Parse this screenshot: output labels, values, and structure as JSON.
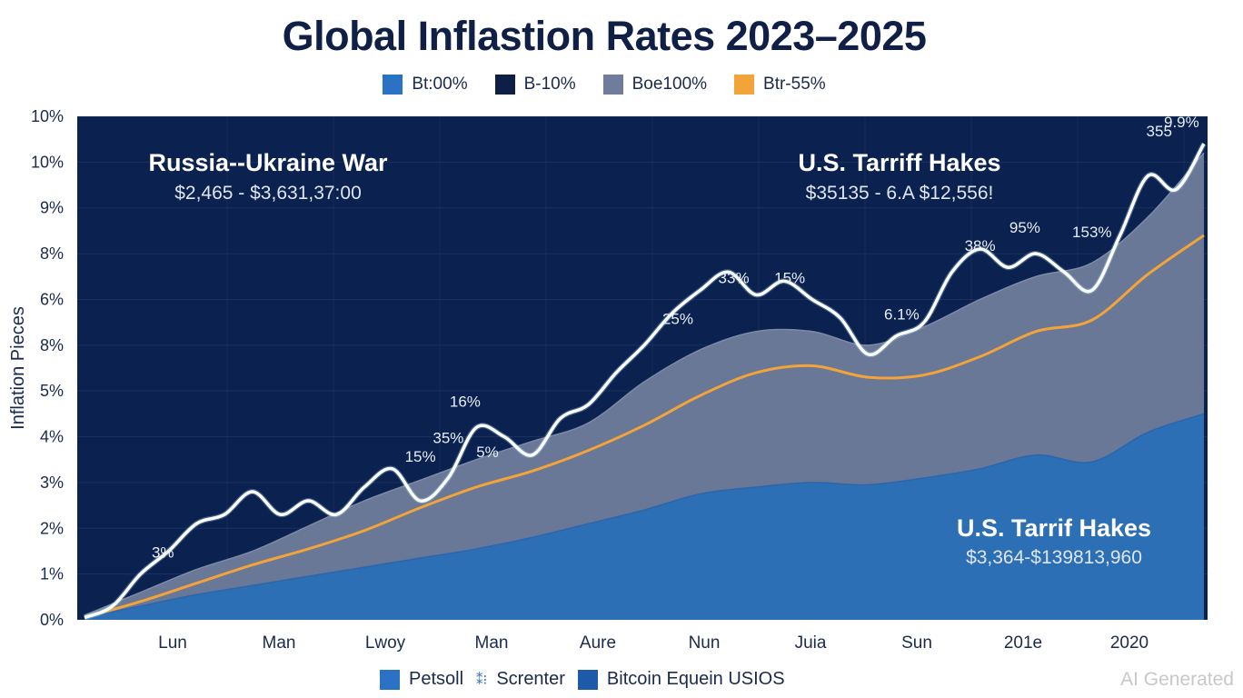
{
  "chart_data": {
    "type": "area",
    "title": "Global Inflastion Rates 2023–2025",
    "xlabel": "",
    "ylabel": "Inflation Pieces",
    "ytick_labels": [
      "0%",
      "1%",
      "2%",
      "3%",
      "4%",
      "5%",
      "8%",
      "6%",
      "8%",
      "9%",
      "10%",
      "10%"
    ],
    "ylim": [
      0,
      11
    ],
    "xtick_labels": [
      "Lun",
      "Man",
      "Lwoy",
      "Man",
      "Aure",
      "Nun",
      "Juia",
      "Sun",
      "201e",
      "2020"
    ],
    "grid": true,
    "legend_top": [
      {
        "label": "Bt:00%",
        "color": "#2a72c4"
      },
      {
        "label": "B-10%",
        "color": "#0d1f45"
      },
      {
        "label": "Boe100%",
        "color": "#6f7d9a"
      },
      {
        "label": "Btr-55%",
        "color": "#f2a33a"
      }
    ],
    "legend_bottom": [
      {
        "label": "Petsoll",
        "symbol": "square",
        "color": "#2a72c4"
      },
      {
        "label": "Screnter",
        "symbol": "cross-glyph",
        "color": "#2a6fbe"
      },
      {
        "label": "Bitcoin Equein USIOS",
        "symbol": "square",
        "color": "#1f5aa8"
      }
    ],
    "series": [
      {
        "name": "Blue area (Petsoll)",
        "kind": "area",
        "color": "#2d6fb5",
        "x": [
          0,
          0.5,
          1,
          1.5,
          2,
          2.5,
          3,
          3.5,
          4,
          4.5,
          5,
          5.5,
          6,
          6.5,
          7,
          7.5,
          8,
          8.5,
          9,
          9.5,
          10
        ],
        "values": [
          0.05,
          0.3,
          0.55,
          0.75,
          0.95,
          1.15,
          1.35,
          1.55,
          1.8,
          2.1,
          2.4,
          2.75,
          2.9,
          3.0,
          2.95,
          3.1,
          3.3,
          3.6,
          3.45,
          4.1,
          4.5
        ]
      },
      {
        "name": "Grey area (Boe100%)",
        "kind": "area",
        "color": "#6f7d9a",
        "x": [
          0,
          0.5,
          1,
          1.5,
          2,
          2.5,
          3,
          3.5,
          4,
          4.5,
          5,
          5.5,
          6,
          6.5,
          7,
          7.5,
          8,
          8.5,
          9,
          9.5,
          10
        ],
        "values": [
          0.1,
          0.6,
          1.1,
          1.5,
          2.05,
          2.6,
          3.05,
          3.5,
          3.9,
          4.3,
          5.2,
          5.9,
          6.3,
          6.3,
          6.0,
          6.4,
          7.0,
          7.5,
          7.8,
          8.8,
          10.2
        ]
      },
      {
        "name": "Orange trend (Btr-55%)",
        "kind": "line",
        "color": "#f2a33a",
        "x": [
          0,
          0.5,
          1,
          1.5,
          2,
          2.5,
          3,
          3.5,
          4,
          4.5,
          5,
          5.5,
          6,
          6.5,
          7,
          7.5,
          8,
          8.5,
          9,
          9.5,
          10
        ],
        "values": [
          0.05,
          0.4,
          0.8,
          1.2,
          1.55,
          1.95,
          2.45,
          2.9,
          3.25,
          3.7,
          4.25,
          4.9,
          5.4,
          5.55,
          5.3,
          5.35,
          5.75,
          6.3,
          6.55,
          7.55,
          8.4
        ]
      },
      {
        "name": "White index (Screnter)",
        "kind": "line",
        "color": "#ffffff",
        "x": [
          0,
          0.25,
          0.5,
          0.75,
          1,
          1.25,
          1.5,
          1.75,
          2,
          2.25,
          2.5,
          2.75,
          3,
          3.25,
          3.5,
          3.75,
          4,
          4.25,
          4.5,
          4.75,
          5,
          5.25,
          5.5,
          5.75,
          6,
          6.25,
          6.5,
          6.75,
          7,
          7.25,
          7.5,
          7.75,
          8,
          8.25,
          8.5,
          8.75,
          9,
          9.25,
          9.5,
          9.75,
          10
        ],
        "values": [
          0.05,
          0.3,
          1.0,
          1.5,
          2.1,
          2.3,
          2.8,
          2.3,
          2.6,
          2.3,
          2.9,
          3.3,
          2.6,
          3.1,
          4.2,
          4.0,
          3.6,
          4.4,
          4.7,
          5.4,
          6.0,
          6.7,
          7.2,
          7.6,
          7.1,
          7.4,
          7.0,
          6.6,
          5.8,
          6.2,
          6.5,
          7.6,
          8.1,
          7.7,
          8.0,
          7.6,
          7.2,
          8.4,
          9.7,
          9.4,
          10.4
        ]
      }
    ],
    "annotations": [
      {
        "title": "Russia--Ukraine War",
        "subtitle": "$2,465 - $3,631,37:00",
        "position": "top-left"
      },
      {
        "title": "U.S. Tarriff Hakes",
        "subtitle": "$35135 - 6.A $12,556!",
        "position": "top-right"
      },
      {
        "title": "U.S. Tarrif Hakes",
        "subtitle": "$3,364-$139813,960",
        "position": "bottom-right"
      }
    ],
    "data_labels": [
      {
        "text": "3%",
        "x": 0.7,
        "y": 1.2
      },
      {
        "text": "15%",
        "x": 3.0,
        "y": 3.3
      },
      {
        "text": "35%",
        "x": 3.25,
        "y": 3.7
      },
      {
        "text": "5%",
        "x": 3.6,
        "y": 3.4
      },
      {
        "text": "16%",
        "x": 3.4,
        "y": 4.5
      },
      {
        "text": "25%",
        "x": 5.3,
        "y": 6.3
      },
      {
        "text": "33%",
        "x": 5.8,
        "y": 7.2
      },
      {
        "text": "15%",
        "x": 6.3,
        "y": 7.2
      },
      {
        "text": "6.1%",
        "x": 7.3,
        "y": 6.4
      },
      {
        "text": "38%",
        "x": 8.0,
        "y": 7.9
      },
      {
        "text": "95%",
        "x": 8.4,
        "y": 8.3
      },
      {
        "text": "153%",
        "x": 9.0,
        "y": 8.2
      },
      {
        "text": "355",
        "x": 9.6,
        "y": 10.4
      },
      {
        "text": "9.9%",
        "x": 9.8,
        "y": 10.6
      }
    ]
  },
  "watermark": "AI Generated"
}
